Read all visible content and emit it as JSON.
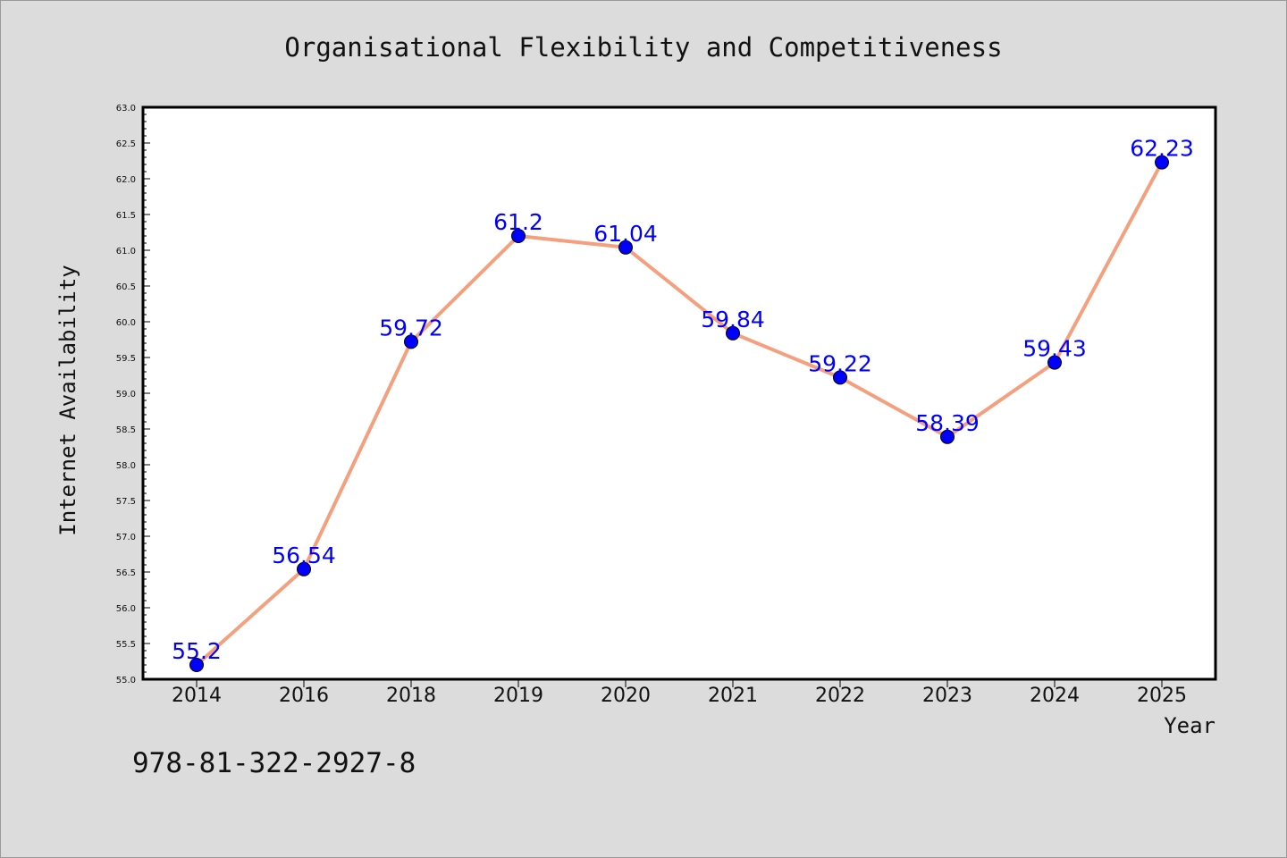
{
  "chart_data": {
    "type": "line",
    "title": "Organisational Flexibility and Competitiveness",
    "xlabel": "Year",
    "ylabel": "Internet Availability",
    "categories": [
      "2014",
      "2016",
      "2018",
      "2019",
      "2020",
      "2021",
      "2022",
      "2023",
      "2024",
      "2025"
    ],
    "values": [
      55.2,
      56.54,
      59.72,
      61.2,
      61.04,
      59.84,
      59.22,
      58.39,
      59.43,
      62.23
    ],
    "data_labels": [
      "55.2",
      "56.54",
      "59.72",
      "61.2",
      "61.04",
      "59.84",
      "59.22",
      "58.39",
      "59.43",
      "62.23"
    ],
    "ylim": [
      55.0,
      63.0
    ],
    "yticks": [
      "55.0",
      "55.5",
      "56.0",
      "56.5",
      "57.0",
      "57.5",
      "58.0",
      "58.5",
      "59.0",
      "59.5",
      "60.0",
      "60.5",
      "61.0",
      "61.5",
      "62.0",
      "62.5",
      "63.0"
    ],
    "grid": false,
    "colors": {
      "background": "#dcdcdc",
      "plot_background": "#ffffff",
      "line": "#f4a07e",
      "marker": "#0000ff",
      "data_label": "#0000ff"
    }
  },
  "footer": {
    "isbn": "978-81-322-2927-8"
  }
}
